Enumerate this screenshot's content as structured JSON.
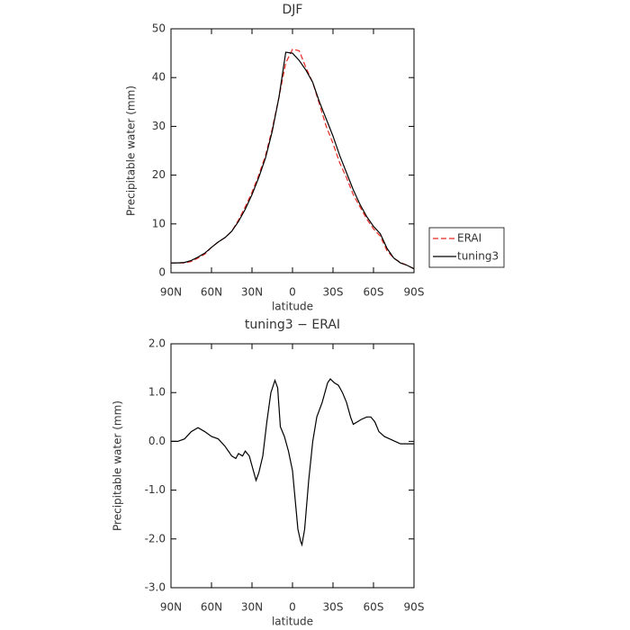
{
  "chart_data": [
    {
      "type": "line",
      "title": "DJF",
      "xlabel": "latitude",
      "ylabel": "Precipitable water (mm)",
      "x": [
        90,
        85,
        80,
        75,
        70,
        65,
        60,
        55,
        50,
        45,
        40,
        35,
        30,
        25,
        20,
        15,
        10,
        5,
        0,
        -5,
        -10,
        -15,
        -20,
        -25,
        -30,
        -35,
        -40,
        -45,
        -50,
        -55,
        -60,
        -65,
        -70,
        -75,
        -80,
        -85,
        -90
      ],
      "series": [
        {
          "name": "ERAI",
          "color": "#e8281e",
          "style": "dashed",
          "values": [
            2,
            2,
            2,
            2.3,
            3,
            3.8,
            5.2,
            6.3,
            7.2,
            8.5,
            10.8,
            13.5,
            16.5,
            20,
            24,
            29.5,
            36,
            43,
            45.8,
            45.5,
            42,
            39,
            34.5,
            30,
            26.5,
            22.5,
            19.5,
            16,
            13.5,
            11,
            9,
            7.5,
            4.5,
            3,
            2.1,
            1.5,
            0.8
          ]
        },
        {
          "name": "tuning3",
          "color": "#000000",
          "style": "solid",
          "values": [
            2,
            2,
            2.1,
            2.5,
            3.2,
            4,
            5.2,
            6.3,
            7.2,
            8.5,
            10.5,
            13,
            16,
            19.5,
            23.5,
            29,
            36,
            45.2,
            45,
            43.5,
            41.5,
            39,
            35,
            31.5,
            28,
            24,
            20.5,
            17,
            14,
            11.5,
            9.5,
            8,
            5,
            3,
            2,
            1.5,
            0.8
          ]
        }
      ],
      "xlim": [
        90,
        -90
      ],
      "xticks": [
        {
          "value": 90,
          "label": "90N"
        },
        {
          "value": 60,
          "label": "60N"
        },
        {
          "value": 30,
          "label": "30N"
        },
        0,
        {
          "value": -30,
          "label": "30S"
        },
        {
          "value": -60,
          "label": "60S"
        },
        {
          "value": -90,
          "label": "90S"
        }
      ],
      "ylim": [
        0,
        50
      ],
      "yticks": [
        0,
        10,
        20,
        30,
        40,
        50
      ],
      "legend": "right"
    },
    {
      "type": "line",
      "title": "tuning3 − ERAI",
      "xlabel": "latitude",
      "ylabel": "Precipitable water (mm)",
      "x": [
        90,
        85,
        80,
        75,
        70,
        65,
        60,
        55,
        50,
        45,
        42,
        40,
        37,
        35,
        32,
        30,
        27,
        25,
        22,
        19,
        16,
        13,
        11,
        9,
        6,
        3,
        0,
        -2,
        -4,
        -6,
        -7,
        -9,
        -12,
        -15,
        -18,
        -22,
        -26,
        -28,
        -31,
        -34,
        -37,
        -40,
        -43,
        -45,
        -48,
        -51,
        -55,
        -58,
        -61,
        -64,
        -68,
        -72,
        -76,
        -80,
        -90
      ],
      "series": [
        {
          "name": "tuning3 − ERAI",
          "color": "#000000",
          "style": "solid",
          "values": [
            0,
            0,
            0.05,
            0.2,
            0.28,
            0.2,
            0.1,
            0.05,
            -0.1,
            -0.3,
            -0.35,
            -0.25,
            -0.3,
            -0.2,
            -0.3,
            -0.5,
            -0.8,
            -0.65,
            -0.3,
            0.4,
            1.0,
            1.25,
            1.1,
            0.3,
            0.1,
            -0.2,
            -0.6,
            -1.2,
            -1.8,
            -2.05,
            -2.12,
            -1.8,
            -0.8,
            0,
            0.5,
            0.8,
            1.2,
            1.28,
            1.2,
            1.15,
            1.0,
            0.8,
            0.5,
            0.35,
            0.4,
            0.45,
            0.5,
            0.5,
            0.4,
            0.2,
            0.1,
            0.05,
            0,
            -0.05,
            -0.05
          ]
        }
      ],
      "xlim": [
        90,
        -90
      ],
      "xticks": [
        {
          "value": 90,
          "label": "90N"
        },
        {
          "value": 60,
          "label": "60N"
        },
        {
          "value": 30,
          "label": "30N"
        },
        0,
        {
          "value": -30,
          "label": "30S"
        },
        {
          "value": -60,
          "label": "60S"
        },
        {
          "value": -90,
          "label": "90S"
        }
      ],
      "ylim": [
        -3,
        2
      ],
      "yticks": [
        {
          "value": -3,
          "label": "-3.0"
        },
        {
          "value": -2,
          "label": "-2.0"
        },
        {
          "value": -1,
          "label": "-1.0"
        },
        {
          "value": 0,
          "label": "0.0"
        },
        {
          "value": 1,
          "label": "1.0"
        },
        {
          "value": 2,
          "label": "2.0"
        }
      ]
    }
  ]
}
